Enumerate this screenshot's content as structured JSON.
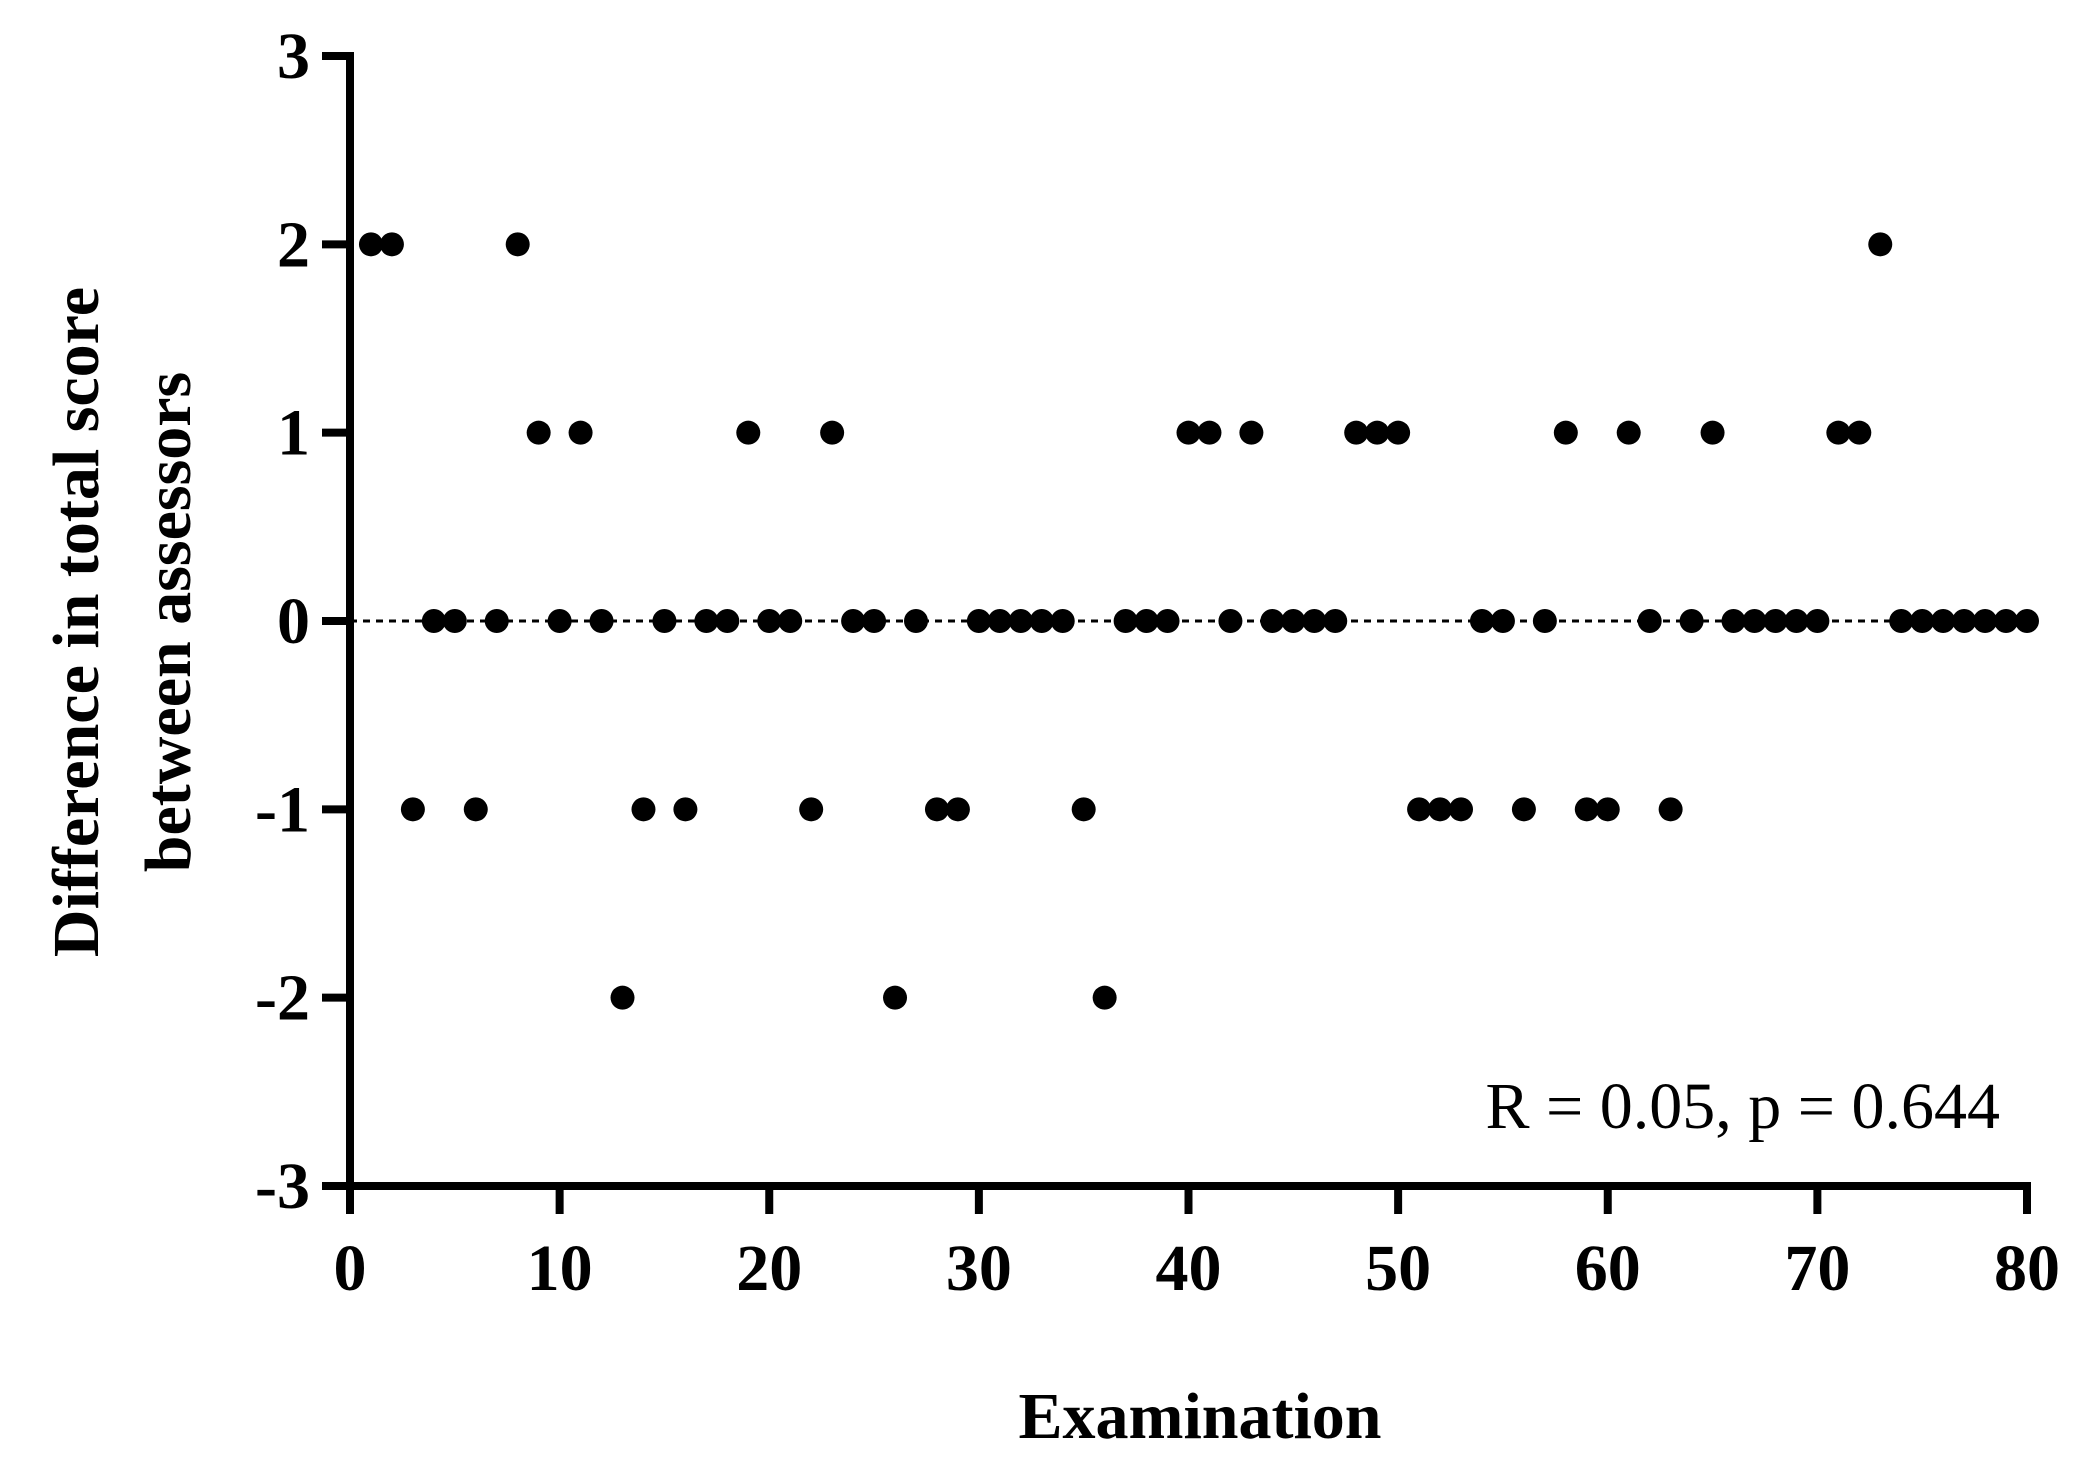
{
  "chart_data": {
    "type": "scatter",
    "xlabel": "Examination",
    "ylabel_lines": [
      "Difference in total score",
      "between assessors"
    ],
    "annotation": "R = 0.05, p = 0.644",
    "xlim": [
      0,
      80
    ],
    "ylim": [
      -3,
      3
    ],
    "x_ticks": [
      0,
      10,
      20,
      30,
      40,
      50,
      60,
      70,
      80
    ],
    "y_ticks": [
      3,
      2,
      1,
      0,
      -1,
      -2,
      -3
    ],
    "x_tick_labels": [
      "0",
      "10",
      "20",
      "30",
      "40",
      "50",
      "60",
      "70",
      "80"
    ],
    "y_tick_labels": [
      "3",
      "2",
      "1",
      "0",
      "-1",
      "-2",
      "-3"
    ],
    "reference_line": {
      "y": 0,
      "style": "dotted"
    },
    "grid": false,
    "marker_color": "#000000",
    "x": [
      1,
      2,
      3,
      4,
      5,
      6,
      7,
      8,
      9,
      10,
      11,
      12,
      13,
      14,
      15,
      16,
      17,
      18,
      19,
      20,
      21,
      22,
      23,
      24,
      25,
      26,
      27,
      28,
      29,
      30,
      31,
      32,
      33,
      34,
      35,
      36,
      37,
      38,
      39,
      40,
      41,
      42,
      43,
      44,
      45,
      46,
      47,
      48,
      49,
      50,
      51,
      52,
      53,
      54,
      55,
      56,
      57,
      58,
      59,
      60,
      61,
      62,
      63,
      64,
      65,
      66,
      67,
      68,
      69,
      70,
      71,
      72,
      73,
      74,
      75,
      76,
      77,
      78,
      79,
      80
    ],
    "y": [
      2,
      2,
      -1,
      0,
      0,
      -1,
      0,
      2,
      1,
      0,
      1,
      0,
      -2,
      -1,
      0,
      -1,
      0,
      0,
      1,
      0,
      0,
      -1,
      1,
      0,
      0,
      -2,
      0,
      -1,
      -1,
      0,
      0,
      0,
      0,
      0,
      -1,
      -2,
      0,
      0,
      0,
      1,
      1,
      0,
      1,
      0,
      0,
      0,
      0,
      1,
      1,
      1,
      -1,
      -1,
      -1,
      0,
      0,
      -1,
      0,
      1,
      -1,
      -1,
      1,
      0,
      -1,
      0,
      1,
      0,
      0,
      0,
      0,
      0,
      1,
      1,
      2,
      0,
      0,
      0,
      0,
      0,
      0,
      0
    ]
  }
}
